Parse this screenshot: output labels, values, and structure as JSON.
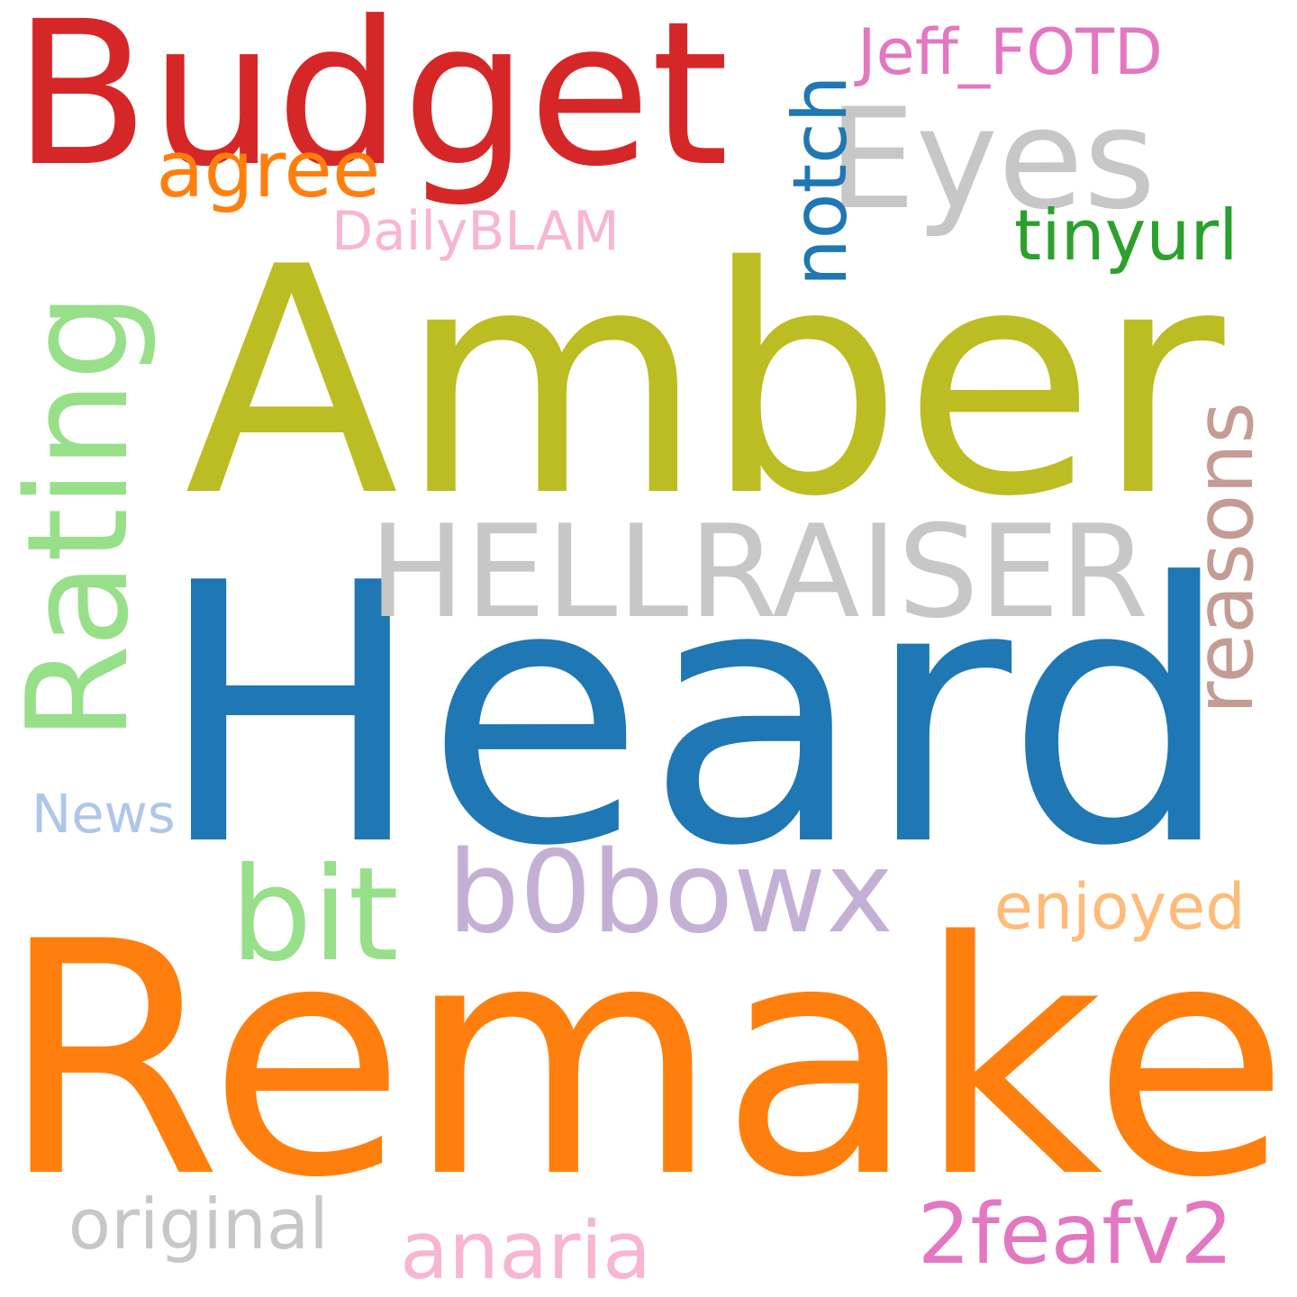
{
  "words": {
    "remake": {
      "text": "Remake",
      "color": "#ff7f0e"
    },
    "heard": {
      "text": "Heard",
      "color": "#1f77b4"
    },
    "amber": {
      "text": "Amber",
      "color": "#bcbd22"
    },
    "budget": {
      "text": "Budget",
      "color": "#d62728"
    },
    "hellraiser": {
      "text": "HELLRAISER",
      "color": "#c7c7c7"
    },
    "eyes": {
      "text": "Eyes",
      "color": "#c7c7c7"
    },
    "rating": {
      "text": "Rating",
      "color": "#98df8a"
    },
    "b0bowx": {
      "text": "b0bowx",
      "color": "#c5b0d5"
    },
    "bit": {
      "text": "bit",
      "color": "#98df8a"
    },
    "jeff_fotd": {
      "text": "Jeff_FOTD",
      "color": "#e377c2"
    },
    "tinyurl": {
      "text": "tinyurl",
      "color": "#2ca02c"
    },
    "notch": {
      "text": "notch",
      "color": "#1f77b4"
    },
    "reasons": {
      "text": "reasons",
      "color": "#c49c94"
    },
    "enjoyed": {
      "text": "enjoyed",
      "color": "#ffbb78"
    },
    "agree": {
      "text": "agree",
      "color": "#ff7f0e"
    },
    "dailyblam": {
      "text": "DailyBLAM",
      "color": "#f7b6d2"
    },
    "news": {
      "text": "News",
      "color": "#aec7e8"
    },
    "original": {
      "text": "original",
      "color": "#c7c7c7"
    },
    "anaria": {
      "text": "anaria",
      "color": "#f7b6d2"
    },
    "2feafv2": {
      "text": "2feafv2",
      "color": "#e377c2"
    }
  }
}
